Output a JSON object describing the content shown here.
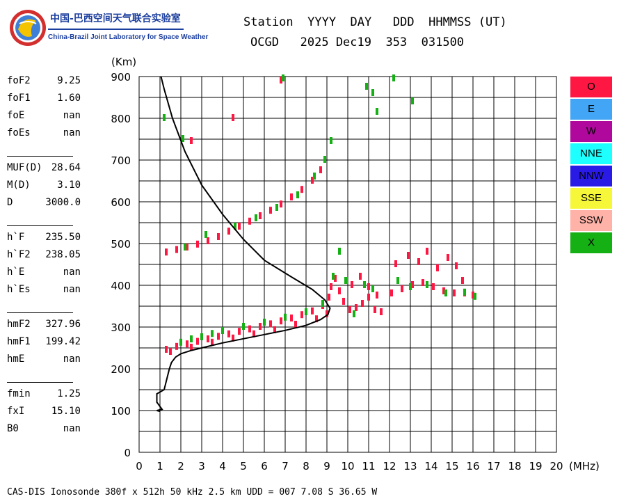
{
  "logo": {
    "icon": "ionosphere-globe-logo",
    "chinese_name": "中国-巴西空间天气联合实验室",
    "english_name": "China-Brazil Joint Laboratory for Space Weather"
  },
  "header": {
    "line1": "Station  YYYY  DAY   DDD  HHMMSS (UT)",
    "line2": "OCGD   2025 Dec19  353  031500"
  },
  "parameters": [
    [
      {
        "key": "foF2",
        "val": "9.25"
      },
      {
        "key": "foF1",
        "val": "1.60"
      },
      {
        "key": "foE",
        "val": "nan"
      },
      {
        "key": "foEs",
        "val": "nan"
      }
    ],
    [
      {
        "key": "MUF(D)",
        "val": "28.64"
      },
      {
        "key": "M(D)",
        "val": "3.10"
      },
      {
        "key": "D",
        "val": "3000.0"
      }
    ],
    [
      {
        "key": "h`F",
        "val": "235.50"
      },
      {
        "key": "h`F2",
        "val": "238.05"
      },
      {
        "key": "h`E",
        "val": "nan"
      },
      {
        "key": "h`Es",
        "val": "nan"
      }
    ],
    [
      {
        "key": "hmF2",
        "val": "327.96"
      },
      {
        "key": "hmF1",
        "val": "199.42"
      },
      {
        "key": "hmE",
        "val": "nan"
      }
    ],
    [
      {
        "key": "fmin",
        "val": "1.25"
      },
      {
        "key": "fxI",
        "val": "15.10"
      },
      {
        "key": "B0",
        "val": "nan"
      }
    ]
  ],
  "legend": [
    {
      "label": "O",
      "color": "#ff1744"
    },
    {
      "label": "E",
      "color": "#42a5f5"
    },
    {
      "label": "W",
      "color": "#b0089c"
    },
    {
      "label": "NNE",
      "color": "#1effff"
    },
    {
      "label": "NNW",
      "color": "#2a1ae6"
    },
    {
      "label": "SSE",
      "color": "#f7f73a"
    },
    {
      "label": "SSW",
      "color": "#ffb3a8"
    },
    {
      "label": "X",
      "color": "#14b014"
    }
  ],
  "footer": "CAS-DIS Ionosonde 380f x 512h 50 kHz 2.5 km UDD = 007 7.08 S 36.65 W",
  "chart_data": {
    "type": "scatter",
    "ylabel": "(Km)",
    "xlabel": "(MHz)",
    "xlim": [
      0,
      20
    ],
    "ylim": [
      0,
      900
    ],
    "xticks": [
      0,
      1,
      2,
      3,
      4,
      5,
      6,
      7,
      8,
      9,
      10,
      11,
      12,
      13,
      14,
      15,
      16,
      17,
      18,
      19,
      20
    ],
    "yticks": [
      0,
      100,
      200,
      300,
      400,
      500,
      600,
      700,
      800,
      900
    ],
    "grid": true,
    "colors": {
      "O": "#ff1744",
      "X": "#14b014",
      "profile": "#000000"
    },
    "series": [
      {
        "name": "O",
        "values": [
          [
            1.3,
            245
          ],
          [
            1.8,
            252
          ],
          [
            2.3,
            258
          ],
          [
            2.8,
            264
          ],
          [
            3.3,
            270
          ],
          [
            3.8,
            276
          ],
          [
            4.3,
            282
          ],
          [
            4.8,
            288
          ],
          [
            5.3,
            294
          ],
          [
            5.8,
            300
          ],
          [
            6.3,
            306
          ],
          [
            6.8,
            313
          ],
          [
            7.3,
            320
          ],
          [
            7.8,
            328
          ],
          [
            8.3,
            337
          ],
          [
            8.8,
            350
          ],
          [
            9.1,
            370
          ],
          [
            1.5,
            240
          ],
          [
            2.5,
            250
          ],
          [
            3.5,
            262
          ],
          [
            4.5,
            272
          ],
          [
            5.5,
            282
          ],
          [
            6.5,
            292
          ],
          [
            7.5,
            305
          ],
          [
            8.5,
            318
          ],
          [
            9.0,
            330
          ],
          [
            9.2,
            395
          ],
          [
            9.4,
            415
          ],
          [
            9.6,
            385
          ],
          [
            9.8,
            360
          ],
          [
            10.1,
            340
          ],
          [
            10.4,
            345
          ],
          [
            10.7,
            355
          ],
          [
            11.0,
            370
          ],
          [
            11.3,
            340
          ],
          [
            11.6,
            335
          ],
          [
            10.2,
            400
          ],
          [
            10.6,
            420
          ],
          [
            11.0,
            395
          ],
          [
            11.4,
            375
          ],
          [
            12.1,
            380
          ],
          [
            12.6,
            390
          ],
          [
            13.1,
            400
          ],
          [
            13.6,
            405
          ],
          [
            14.1,
            395
          ],
          [
            14.6,
            385
          ],
          [
            15.1,
            380
          ],
          [
            15.6,
            380
          ],
          [
            16.0,
            375
          ],
          [
            12.3,
            450
          ],
          [
            12.9,
            470
          ],
          [
            13.4,
            455
          ],
          [
            13.8,
            480
          ],
          [
            14.3,
            440
          ],
          [
            14.8,
            465
          ],
          [
            15.2,
            445
          ],
          [
            15.5,
            410
          ],
          [
            1.3,
            478
          ],
          [
            1.8,
            484
          ],
          [
            2.3,
            490
          ],
          [
            2.8,
            497
          ],
          [
            3.3,
            505
          ],
          [
            3.8,
            515
          ],
          [
            4.3,
            528
          ],
          [
            4.8,
            540
          ],
          [
            5.3,
            552
          ],
          [
            5.8,
            565
          ],
          [
            6.3,
            578
          ],
          [
            6.8,
            593
          ],
          [
            7.3,
            610
          ],
          [
            7.8,
            628
          ],
          [
            8.3,
            650
          ],
          [
            8.7,
            675
          ],
          [
            4.5,
            800
          ],
          [
            6.8,
            890
          ],
          [
            2.5,
            745
          ]
        ]
      },
      {
        "name": "X",
        "values": [
          [
            2.0,
            262
          ],
          [
            2.5,
            270
          ],
          [
            3.0,
            275
          ],
          [
            3.5,
            283
          ],
          [
            4.0,
            290
          ],
          [
            5.0,
            300
          ],
          [
            6.0,
            310
          ],
          [
            7.0,
            322
          ],
          [
            8.0,
            335
          ],
          [
            8.8,
            355
          ],
          [
            9.3,
            420
          ],
          [
            9.6,
            480
          ],
          [
            9.9,
            410
          ],
          [
            10.3,
            330
          ],
          [
            10.8,
            400
          ],
          [
            11.2,
            390
          ],
          [
            12.4,
            410
          ],
          [
            13.0,
            395
          ],
          [
            13.8,
            400
          ],
          [
            14.7,
            380
          ],
          [
            15.6,
            382
          ],
          [
            16.1,
            372
          ],
          [
            2.2,
            490
          ],
          [
            3.2,
            520
          ],
          [
            4.6,
            540
          ],
          [
            5.6,
            560
          ],
          [
            6.6,
            585
          ],
          [
            7.6,
            615
          ],
          [
            8.4,
            660
          ],
          [
            8.9,
            700
          ],
          [
            9.2,
            745
          ],
          [
            1.2,
            800
          ],
          [
            2.1,
            750
          ],
          [
            6.9,
            895
          ],
          [
            10.9,
            875
          ],
          [
            11.2,
            860
          ],
          [
            11.4,
            815
          ],
          [
            13.1,
            840
          ],
          [
            12.2,
            895
          ]
        ]
      }
    ],
    "profile": {
      "name": "",
      "points": [
        [
          1.0,
          98
        ],
        [
          0.85,
          100
        ],
        [
          1.1,
          103
        ],
        [
          0.85,
          120
        ],
        [
          0.85,
          140
        ],
        [
          1.2,
          150
        ],
        [
          1.25,
          160
        ],
        [
          1.35,
          180
        ],
        [
          1.45,
          200
        ],
        [
          1.55,
          215
        ],
        [
          1.75,
          228
        ],
        [
          2.0,
          236
        ],
        [
          2.5,
          244
        ],
        [
          3.0,
          250
        ],
        [
          3.5,
          256
        ],
        [
          4.0,
          262
        ],
        [
          5.0,
          272
        ],
        [
          6.0,
          282
        ],
        [
          7.0,
          292
        ],
        [
          8.0,
          304
        ],
        [
          8.7,
          318
        ],
        [
          9.05,
          330
        ],
        [
          9.15,
          345
        ],
        [
          8.9,
          365
        ],
        [
          8.3,
          390
        ],
        [
          7.3,
          420
        ],
        [
          6.0,
          460
        ],
        [
          5.0,
          510
        ],
        [
          4.0,
          570
        ],
        [
          3.0,
          640
        ],
        [
          2.2,
          720
        ],
        [
          1.6,
          800
        ],
        [
          1.2,
          870
        ],
        [
          1.05,
          900
        ]
      ]
    }
  }
}
